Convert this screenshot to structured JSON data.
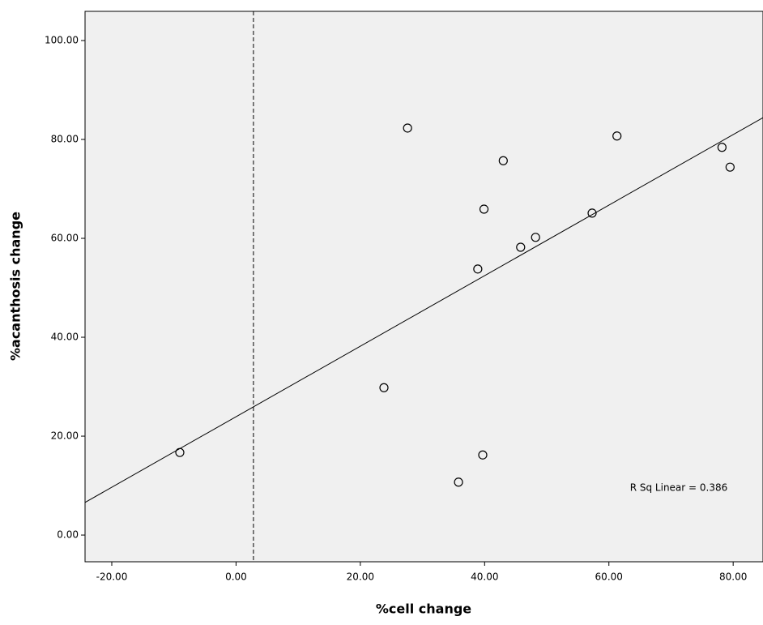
{
  "chart_data": {
    "type": "scatter",
    "x_label": "%cell change",
    "y_label": "%acanthosis change",
    "annotation": "R Sq Linear = 0.386",
    "series": [
      {
        "color": "#000000",
        "x": [
          -9.05,
          23.8,
          27.6,
          38.9,
          39.9,
          39.7,
          35.8,
          43.0,
          45.8,
          48.2,
          57.3,
          61.3,
          78.2,
          79.5
        ],
        "values": [
          16.7,
          29.8,
          82.3,
          53.8,
          65.9,
          16.2,
          10.7,
          75.7,
          58.2,
          60.2,
          65.1,
          80.7,
          78.4,
          74.4
        ]
      }
    ],
    "fit_line": {
      "x": [
        -24.3,
        84.8
      ],
      "y": [
        6.6,
        84.4
      ]
    },
    "reference_x": 2.8,
    "xlim": [
      -24.3,
      84.8
    ],
    "ylim": [
      -5.4,
      105.9
    ],
    "xticks": [
      {
        "value": -20,
        "label": "-20.00"
      },
      {
        "value": 0,
        "label": "0.00"
      },
      {
        "value": 20,
        "label": "20.00"
      },
      {
        "value": 40,
        "label": "40.00"
      },
      {
        "value": 60,
        "label": "60.00"
      },
      {
        "value": 80,
        "label": "80.00"
      }
    ],
    "yticks": [
      {
        "value": 0,
        "label": "0.00"
      },
      {
        "value": 20,
        "label": "20.00"
      },
      {
        "value": 40,
        "label": "40.00"
      },
      {
        "value": 60,
        "label": "60.00"
      },
      {
        "value": 80,
        "label": "80.00"
      },
      {
        "value": 100,
        "label": "100.00"
      }
    ]
  }
}
